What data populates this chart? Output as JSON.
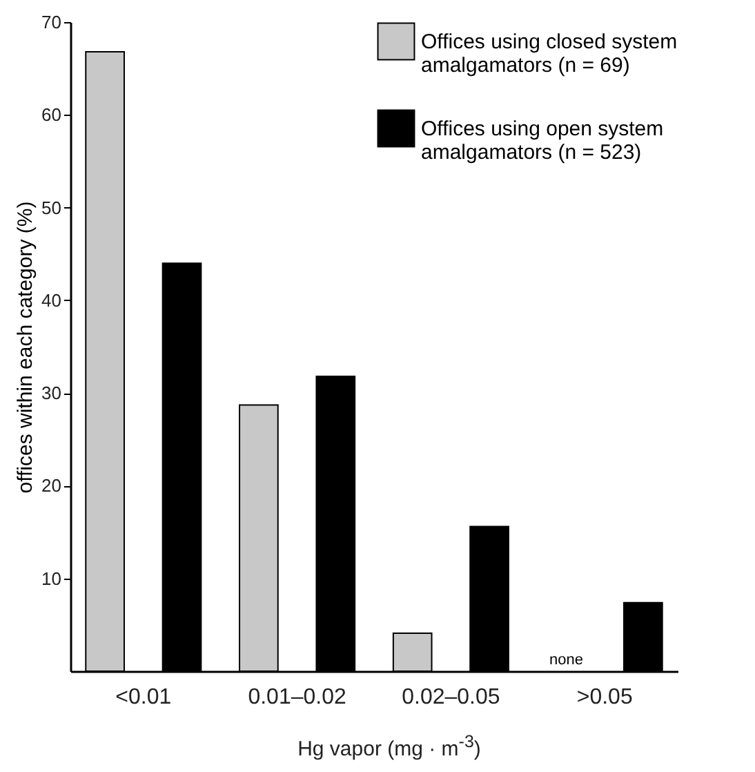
{
  "chart_data": {
    "type": "bar",
    "xlabel": "Hg vapor (mg · m$^{-3}$)",
    "ylabel": "offices within each category (%)",
    "categories": [
      "<0.01",
      "0.01–0.02",
      "0.02–0.05",
      ">0.05"
    ],
    "series": [
      {
        "name": "Offices using closed system amalgamators (n = 69)",
        "color": "#c8c8c8",
        "values": [
          66.8,
          28.7,
          4.1,
          0
        ]
      },
      {
        "name": "Offices using open system amalgamators (n = 523)",
        "color": "#000000",
        "values": [
          44.0,
          31.8,
          15.6,
          7.4
        ]
      }
    ],
    "ylim": [
      0,
      70
    ],
    "yticks": [
      10,
      20,
      30,
      40,
      50,
      60,
      70
    ],
    "grid": false,
    "legend": "top right",
    "annotations": [
      "none"
    ]
  }
}
